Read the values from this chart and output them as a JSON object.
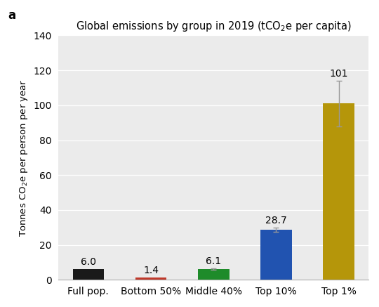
{
  "categories": [
    "Full pop.",
    "Bottom 50%",
    "Middle 40%",
    "Top 10%",
    "Top 1%"
  ],
  "values": [
    6.0,
    1.4,
    6.1,
    28.7,
    101
  ],
  "bar_colors": [
    "#1a1a1a",
    "#c0392b",
    "#1e8b2a",
    "#2153b0",
    "#b5960a"
  ],
  "error_bars": [
    null,
    null,
    0.3,
    1.2,
    13.0
  ],
  "value_labels": [
    "6.0",
    "1.4",
    "6.1",
    "28.7",
    "101"
  ],
  "title": "Global emissions by group in 2019 (tCO$_2$e per capita)",
  "ylabel": "Tonnes CO$_2$e per person per year",
  "ylim": [
    0,
    140
  ],
  "yticks": [
    0,
    20,
    40,
    60,
    80,
    100,
    120,
    140
  ],
  "panel_label": "a",
  "background_color": "#ebebeb",
  "fig_background_color": "#ffffff",
  "title_fontsize": 10.5,
  "label_fontsize": 9.5,
  "tick_fontsize": 10,
  "bar_width": 0.5
}
